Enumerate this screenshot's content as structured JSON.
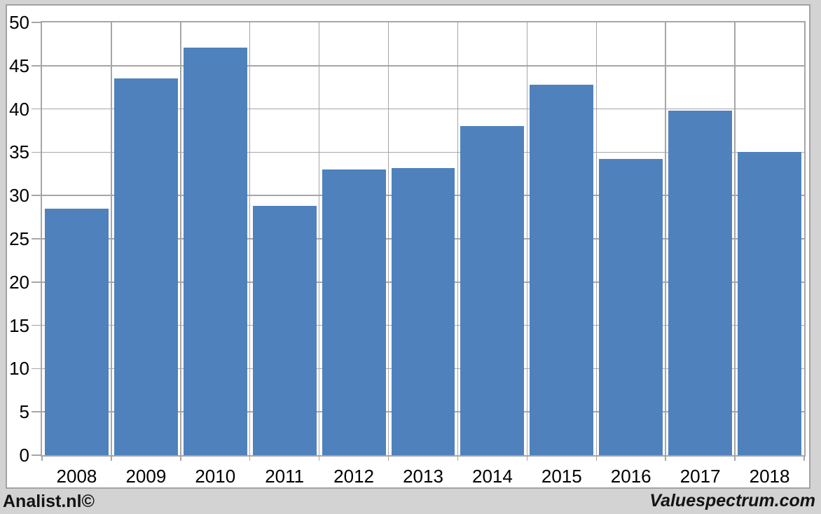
{
  "page": {
    "background_color": "#d3d3d3",
    "panel_color": "#ffffff",
    "border_color": "#a3a3a3"
  },
  "footer": {
    "left_text": "Analist.nl©",
    "right_text": "Valuespectrum.com"
  },
  "chart_data": {
    "type": "bar",
    "title": "",
    "xlabel": "",
    "ylabel": "",
    "categories": [
      "2008",
      "2009",
      "2010",
      "2011",
      "2012",
      "2013",
      "2014",
      "2015",
      "2016",
      "2017",
      "2018"
    ],
    "values": [
      28.5,
      43.5,
      47.1,
      28.8,
      33.0,
      33.2,
      38.0,
      42.8,
      34.2,
      39.8,
      35.0
    ],
    "ylim": [
      0,
      50
    ],
    "ytick_step": 5,
    "ytick_labels": [
      "0",
      "5",
      "10",
      "15",
      "20",
      "25",
      "30",
      "35",
      "40",
      "45",
      "50"
    ],
    "grid": "horizontal-and-vertical",
    "legend": "none",
    "bar_color": "#4F81BD",
    "plot_background": "#ffffff",
    "gridline_color": "#a6a6a6",
    "tick_label_color": "#000000"
  }
}
